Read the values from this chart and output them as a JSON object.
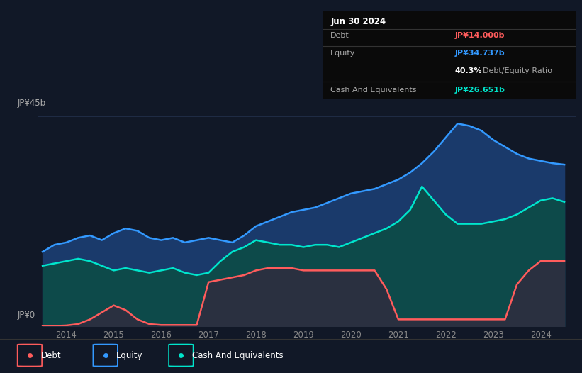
{
  "background_color": "#111827",
  "plot_bg_color": "#111827",
  "ylabel_text": "JP¥45b",
  "ylabel0_text": "JP¥0",
  "x_ticks": [
    2014,
    2015,
    2016,
    2017,
    2018,
    2019,
    2020,
    2021,
    2022,
    2023,
    2024
  ],
  "debt_color": "#ff5c5c",
  "equity_color": "#3399ff",
  "cash_color": "#00e5cc",
  "equity_fill_color": "#1a3a6b",
  "cash_fill_color": "#0d4a4a",
  "debt_fill_color": "#2a3040",
  "tooltip_title": "Jun 30 2024",
  "tooltip_debt_label": "Debt",
  "tooltip_debt_value": "JP¥14.000b",
  "tooltip_equity_label": "Equity",
  "tooltip_equity_value": "JP¥34.737b",
  "tooltip_ratio": "40.3%",
  "tooltip_ratio_label": "Debt/Equity Ratio",
  "tooltip_cash_label": "Cash And Equivalents",
  "tooltip_cash_value": "JP¥26.651b",
  "legend_labels": [
    "Debt",
    "Equity",
    "Cash And Equivalents"
  ],
  "years": [
    2013.5,
    2013.75,
    2014.0,
    2014.25,
    2014.5,
    2014.75,
    2015.0,
    2015.25,
    2015.5,
    2015.75,
    2016.0,
    2016.25,
    2016.5,
    2016.75,
    2017.0,
    2017.25,
    2017.5,
    2017.75,
    2018.0,
    2018.25,
    2018.5,
    2018.75,
    2019.0,
    2019.25,
    2019.5,
    2019.75,
    2020.0,
    2020.25,
    2020.5,
    2020.75,
    2021.0,
    2021.25,
    2021.5,
    2021.75,
    2022.0,
    2022.25,
    2022.5,
    2022.75,
    2023.0,
    2023.25,
    2023.5,
    2023.75,
    2024.0,
    2024.25,
    2024.5
  ],
  "debt_values": [
    0.1,
    0.1,
    0.2,
    0.5,
    1.5,
    3.0,
    4.5,
    3.5,
    1.5,
    0.5,
    0.3,
    0.3,
    0.3,
    0.3,
    9.5,
    10.0,
    10.5,
    11.0,
    12.0,
    12.5,
    12.5,
    12.5,
    12.0,
    12.0,
    12.0,
    12.0,
    12.0,
    12.0,
    12.0,
    8.0,
    1.5,
    1.5,
    1.5,
    1.5,
    1.5,
    1.5,
    1.5,
    1.5,
    1.5,
    1.5,
    9.0,
    12.0,
    14.0,
    14.0,
    14.0
  ],
  "equity_values": [
    16.0,
    17.5,
    18.0,
    19.0,
    19.5,
    18.5,
    20.0,
    21.0,
    20.5,
    19.0,
    18.5,
    19.0,
    18.0,
    18.5,
    19.0,
    18.5,
    18.0,
    19.5,
    21.5,
    22.5,
    23.5,
    24.5,
    25.0,
    25.5,
    26.5,
    27.5,
    28.5,
    29.0,
    29.5,
    30.5,
    31.5,
    33.0,
    35.0,
    37.5,
    40.5,
    43.5,
    43.0,
    42.0,
    40.0,
    38.5,
    37.0,
    36.0,
    35.5,
    35.0,
    34.7
  ],
  "cash_values": [
    13.0,
    13.5,
    14.0,
    14.5,
    14.0,
    13.0,
    12.0,
    12.5,
    12.0,
    11.5,
    12.0,
    12.5,
    11.5,
    11.0,
    11.5,
    14.0,
    16.0,
    17.0,
    18.5,
    18.0,
    17.5,
    17.5,
    17.0,
    17.5,
    17.5,
    17.0,
    18.0,
    19.0,
    20.0,
    21.0,
    22.5,
    25.0,
    30.0,
    27.0,
    24.0,
    22.0,
    22.0,
    22.0,
    22.5,
    23.0,
    24.0,
    25.5,
    27.0,
    27.5,
    26.7
  ],
  "ylim_max": 48,
  "xlim_min": 2013.4,
  "xlim_max": 2024.75
}
